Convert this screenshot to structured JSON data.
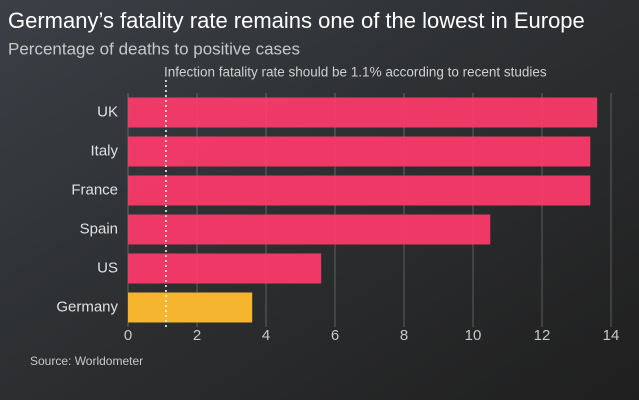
{
  "chart_data": {
    "type": "barh",
    "title": "Germany’s fatality rate remains one of the lowest in Europe",
    "subtitle": "Percentage of deaths to positive cases",
    "source": "Source: Worldometer",
    "categories": [
      "UK",
      "Italy",
      "France",
      "Spain",
      "US",
      "Germany"
    ],
    "values": [
      13.6,
      13.4,
      13.4,
      10.5,
      5.6,
      3.6
    ],
    "colors": [
      "#ff3a6a",
      "#ff3a6a",
      "#ff3a6a",
      "#ff3a6a",
      "#ff3a6a",
      "#f5b52e"
    ],
    "xlim": [
      0,
      14
    ],
    "xticks": [
      0,
      2,
      4,
      6,
      8,
      10,
      12,
      14
    ],
    "grid": true,
    "reference_line": {
      "value": 1.1,
      "label": "Infection fatality rate should be 1.1% according to recent studies"
    }
  }
}
